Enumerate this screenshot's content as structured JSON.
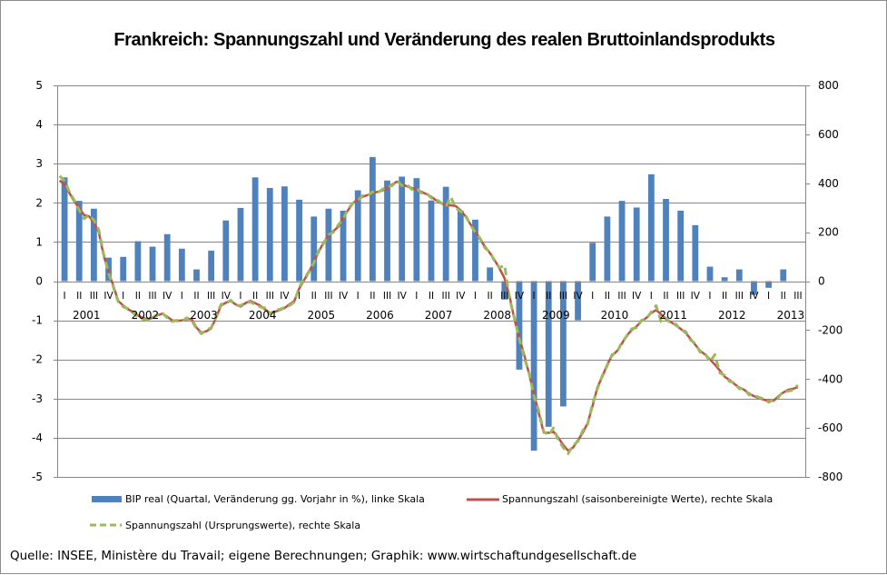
{
  "chart_data": {
    "type": "bar+line",
    "title": "Frankreich: Spannungszahl und Veränderung des realen Bruttoinlandsprodukts",
    "source": "Quelle: INSEE, Ministère du Travail; eigene Berechnungen; Graphik: www.wirtschaftundgesellschaft.de",
    "left_axis": {
      "ylim": [
        -5,
        5
      ],
      "ticks": [
        "5",
        "4",
        "3",
        "2",
        "1",
        "0",
        "-1",
        "-2",
        "-3",
        "-4",
        "-5"
      ]
    },
    "right_axis": {
      "ylim": [
        -800,
        800
      ],
      "ticks": [
        "800",
        "600",
        "400",
        "200",
        "0",
        "-200",
        "-400",
        "-600",
        "-800"
      ]
    },
    "grid": true,
    "legend_position": "bottom",
    "years": [
      "2001",
      "2002",
      "2003",
      "2004",
      "2005",
      "2006",
      "2007",
      "2008",
      "2009",
      "2010",
      "2011",
      "2012",
      "2013"
    ],
    "quarter_labels": [
      "I",
      "II",
      "III",
      "IV"
    ],
    "quarters_count": 51,
    "colors": {
      "bars": "#4f81bd",
      "sa_line": "#c0504d",
      "orig_line": "#9bbb59",
      "grid": "#868686"
    },
    "series": [
      {
        "name": "BIP real (Quartal, Veränderung gg. Vorjahr in %), linke Skala",
        "type": "bar",
        "axis": "left",
        "values": [
          2.65,
          2.05,
          1.85,
          0.6,
          0.62,
          1.02,
          0.88,
          1.2,
          0.83,
          0.3,
          0.78,
          1.55,
          1.87,
          2.65,
          2.38,
          2.42,
          2.08,
          1.65,
          1.85,
          1.8,
          2.32,
          3.17,
          2.57,
          2.67,
          2.63,
          2.06,
          2.41,
          1.8,
          1.57,
          0.35,
          -0.47,
          -2.26,
          -4.33,
          -3.72,
          -3.2,
          -1.0,
          0.98,
          1.65,
          2.05,
          1.88,
          2.73,
          2.1,
          1.8,
          1.43,
          0.37,
          0.1,
          0.3,
          -0.35,
          -0.17,
          0.3
        ]
      },
      {
        "name": "Spannungszahl (saisonbereinigte Werte), rechte Skala",
        "type": "line",
        "axis": "right",
        "frequency": "monthly",
        "values": [
          411,
          395,
          360,
          326,
          300,
          270,
          265,
          240,
          200,
          104,
          40,
          -20,
          -81,
          -100,
          -115,
          -126,
          -140,
          -150,
          -156,
          -150,
          -140,
          -133,
          -145,
          -160,
          -163,
          -160,
          -155,
          -155,
          -190,
          -211,
          -205,
          -193,
          -150,
          -100,
          -88,
          -81,
          -95,
          -104,
          -90,
          -81,
          -90,
          -100,
          -115,
          -130,
          -125,
          -118,
          -110,
          -95,
          -81,
          -30,
          5,
          37,
          80,
          120,
          159,
          185,
          205,
          222,
          260,
          290,
          318,
          335,
          345,
          352,
          360,
          365,
          370,
          380,
          395,
          407,
          395,
          388,
          381,
          375,
          365,
          356,
          345,
          330,
          318,
          312,
          310,
          307,
          290,
          265,
          233,
          205,
          170,
          141,
          115,
          85,
          50,
          11,
          -60,
          -156,
          -230,
          -300,
          -378,
          -460,
          -540,
          -619,
          -620,
          -615,
          -640,
          -670,
          -693,
          -680,
          -650,
          -619,
          -580,
          -510,
          -433,
          -390,
          -340,
          -304,
          -285,
          -255,
          -222,
          -200,
          -185,
          -163,
          -150,
          -130,
          -118,
          -135,
          -155,
          -167,
          -180,
          -195,
          -211,
          -235,
          -260,
          -285,
          -300,
          -320,
          -341,
          -365,
          -390,
          -404,
          -420,
          -435,
          -444,
          -460,
          -470,
          -478,
          -484,
          -490,
          -489,
          -470,
          -455,
          -444,
          -440,
          -433
        ]
      },
      {
        "name": "Spannungszahl (Ursprungswerte), rechte Skala",
        "type": "line",
        "axis": "right",
        "frequency": "monthly",
        "values": [
          430,
          410,
          365,
          330,
          290,
          255,
          270,
          250,
          210,
          110,
          35,
          -25,
          -85,
          -105,
          -112,
          -130,
          -145,
          -155,
          -160,
          -148,
          -138,
          -130,
          -150,
          -165,
          -160,
          -165,
          -150,
          -160,
          -195,
          -215,
          -200,
          -190,
          -145,
          -95,
          -90,
          -78,
          -98,
          -100,
          -88,
          -85,
          -95,
          -105,
          -110,
          -135,
          -120,
          -115,
          -108,
          -100,
          -85,
          -25,
          10,
          40,
          75,
          125,
          155,
          190,
          200,
          230,
          255,
          295,
          320,
          330,
          350,
          350,
          365,
          360,
          375,
          385,
          390,
          410,
          390,
          395,
          375,
          380,
          360,
          360,
          340,
          335,
          320,
          305,
          345,
          300,
          285,
          270,
          230,
          200,
          175,
          135,
          120,
          80,
          55,
          65,
          -70,
          -150,
          -235,
          -310,
          -375,
          -470,
          -530,
          -615,
          -630,
          -600,
          -650,
          -680,
          -705,
          -670,
          -655,
          -610,
          -585,
          -500,
          -440,
          -385,
          -345,
          -300,
          -290,
          -250,
          -225,
          -195,
          -190,
          -160,
          -155,
          -125,
          -100,
          -165,
          -150,
          -175,
          -175,
          -200,
          -205,
          -240,
          -255,
          -290,
          -295,
          -330,
          -300,
          -375,
          -385,
          -410,
          -415,
          -440,
          -440,
          -465,
          -465,
          -475,
          -480,
          -495,
          -485,
          -475,
          -450,
          -450,
          -445,
          -425
        ]
      }
    ]
  },
  "legend": {
    "bars_label": "BIP real (Quartal, Veränderung gg. Vorjahr in %), linke Skala",
    "sa_label": "Spannungszahl (saisonbereinigte Werte), rechte Skala",
    "orig_label": "Spannungszahl (Ursprungswerte), rechte Skala"
  }
}
